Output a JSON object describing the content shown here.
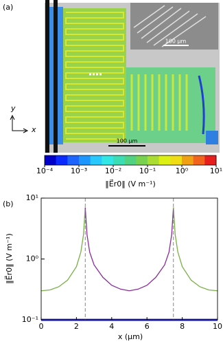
{
  "chart_data": [
    {
      "type": "field-map",
      "panel_label": "(a)",
      "scale_bar_labels": [
        "100 µm",
        "100 µm"
      ],
      "x_axis_label": "x",
      "y_axis_label": "y",
      "colorbar": {
        "label": "‖E⃗r0‖  (V m⁻¹)",
        "log": true,
        "lim": [
          0.0001,
          10
        ],
        "ticks": [
          {
            "value": 0.0001,
            "label": "10⁻⁴"
          },
          {
            "value": 0.001,
            "label": "10⁻³"
          },
          {
            "value": 0.01,
            "label": "10⁻²"
          },
          {
            "value": 0.1,
            "label": "10⁻¹"
          },
          {
            "value": 1,
            "label": "10⁰"
          },
          {
            "value": 10,
            "label": "10¹"
          }
        ],
        "colors": [
          "#0000c8",
          "#0a2aff",
          "#1e64ff",
          "#1e96ff",
          "#28c8ff",
          "#32e6e6",
          "#3cdcb4",
          "#50d282",
          "#78d250",
          "#aadc32",
          "#dcf014",
          "#f0dc14",
          "#f0a014",
          "#f0641e",
          "#e61e1e"
        ]
      }
    },
    {
      "type": "line",
      "panel_label": "(b)",
      "x_label": "x (µm)",
      "y_label": "‖E⃗r0‖  (V m⁻¹)",
      "xlim": [
        0,
        10
      ],
      "xticks": [
        0,
        2,
        4,
        6,
        8,
        10
      ],
      "ylim": [
        0.1,
        10
      ],
      "log_y": true,
      "yticks": [
        {
          "value": 0.1,
          "label": "10⁻¹"
        },
        {
          "value": 1,
          "label": "10⁰"
        },
        {
          "value": 10,
          "label": "10¹"
        }
      ],
      "vlines": [
        2.5,
        7.5
      ],
      "series": [
        {
          "color": "#2222dd",
          "x": [
            0,
            10
          ],
          "values": [
            0.1,
            0.1
          ]
        },
        {
          "color": "#77b043",
          "x": [
            0,
            0.5,
            1,
            1.5,
            2,
            2.25,
            2.4,
            2.5
          ],
          "values": [
            0.3,
            0.31,
            0.35,
            0.45,
            0.75,
            1.3,
            2.5,
            7
          ]
        },
        {
          "color": "#8a2b9c",
          "x": [
            2.5,
            2.6,
            2.75,
            3,
            3.5,
            4,
            4.5,
            5,
            5.5,
            6,
            6.5,
            7,
            7.25,
            7.4,
            7.5
          ],
          "values": [
            7,
            2.5,
            1.3,
            0.8,
            0.5,
            0.37,
            0.32,
            0.3,
            0.32,
            0.37,
            0.5,
            0.8,
            1.3,
            2.5,
            7
          ]
        },
        {
          "color": "#77b043",
          "x": [
            7.5,
            7.6,
            7.75,
            8,
            8.5,
            9,
            9.5,
            10
          ],
          "values": [
            7,
            2.5,
            1.3,
            0.75,
            0.45,
            0.35,
            0.31,
            0.3
          ]
        }
      ]
    }
  ]
}
